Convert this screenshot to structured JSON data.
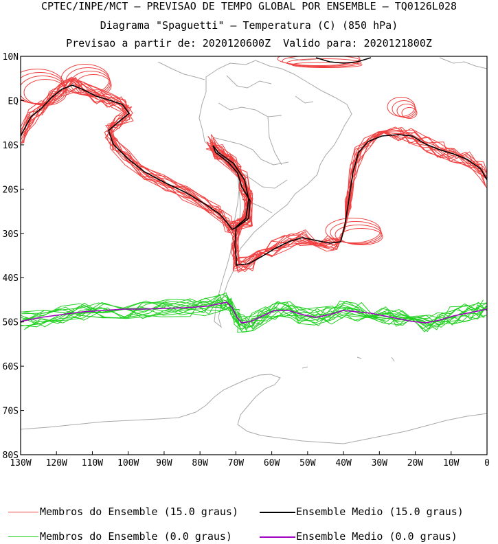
{
  "header": {
    "line1": "CPTEC/INPE/MCT – PREVISAO DE TEMPO GLOBAL POR ENSEMBLE – TQ0126L028",
    "line2": "Diagrama \"Spaguetti\" – Temperatura (C) (850 hPa)",
    "line3": "Previsao a partir de: 2020120600Z  Valido para: 2020121800Z"
  },
  "axes": {
    "lat_labels": [
      "10N",
      "EQ",
      "10S",
      "20S",
      "30S",
      "40S",
      "50S",
      "60S",
      "70S",
      "80S"
    ],
    "lon_labels": [
      "130W",
      "120W",
      "110W",
      "100W",
      "90W",
      "80W",
      "70W",
      "60W",
      "50W",
      "40W",
      "30W",
      "20W",
      "10W",
      "0"
    ]
  },
  "legend": [
    {
      "label": "Membros do Ensemble (15.0 graus)",
      "color": "#f04040"
    },
    {
      "label": "Ensemble Medio (15.0 graus)",
      "color": "#000000"
    },
    {
      "label": "Membros do Ensemble (0.0 graus)",
      "color": "#22d022"
    },
    {
      "label": "Ensemble Medio (0.0 graus)",
      "color": "#a000c0"
    }
  ],
  "colors": {
    "land": "#a8a8a8",
    "member15": "#f04040",
    "mean15": "#000000",
    "member0": "#22d022",
    "mean0": "#a000c0"
  }
}
